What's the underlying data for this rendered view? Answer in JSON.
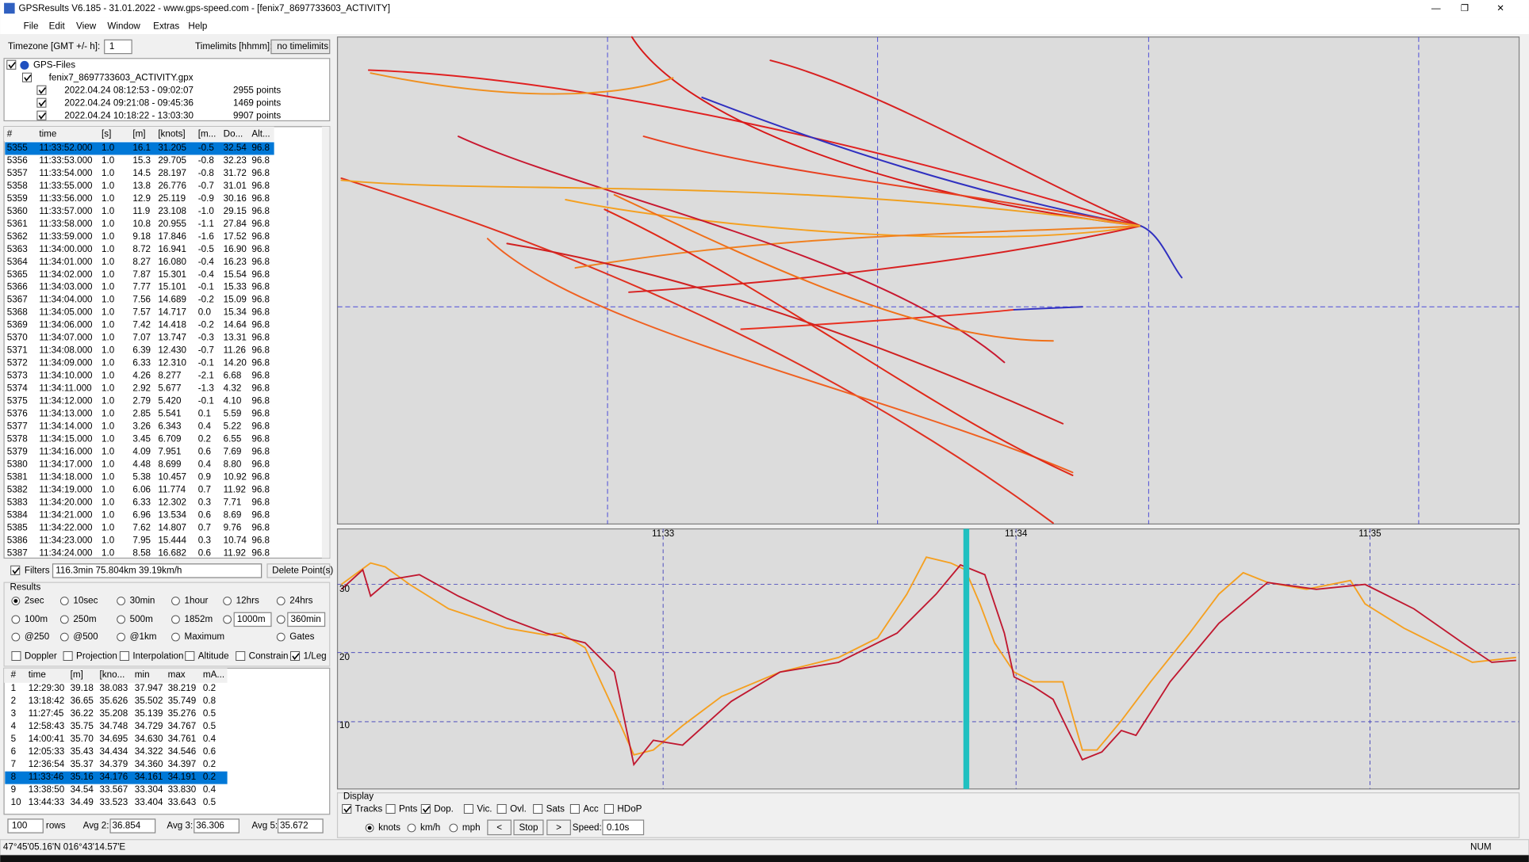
{
  "window": {
    "title": "GPSResults V6.185 - 31.01.2022 - www.gps-speed.com - [fenix7_8697733603_ACTIVITY]",
    "menu": [
      "File",
      "Edit",
      "View",
      "Window",
      "Extras",
      "Help"
    ]
  },
  "toolbar": {
    "timezone_label": "Timezone [GMT +/- h]:",
    "timezone": "1",
    "timelimits_label": "Timelimits [hhmm]:",
    "timelimits": "no timelimits"
  },
  "tree": {
    "root": "GPS-Files",
    "file": "fenix7_8697733603_ACTIVITY.gpx",
    "segments": [
      {
        "range": "2022.04.24 08:12:53 - 09:02:07",
        "points": "2955 points"
      },
      {
        "range": "2022.04.24 09:21:08 - 09:45:36",
        "points": "1469 points"
      },
      {
        "range": "2022.04.24 10:18:22 - 13:03:30",
        "points": "9907 points"
      }
    ]
  },
  "points_table": {
    "columns": [
      "#",
      "time",
      "[s]",
      "[m]",
      "[knots]",
      "[m...",
      "Do...",
      "Alt..."
    ],
    "rows": [
      [
        "5355",
        "11:33:52.000",
        "1.0",
        "16.1",
        "31.205",
        "-0.5",
        "32.54",
        "96.8"
      ],
      [
        "5356",
        "11:33:53.000",
        "1.0",
        "15.3",
        "29.705",
        "-0.8",
        "32.23",
        "96.8"
      ],
      [
        "5357",
        "11:33:54.000",
        "1.0",
        "14.5",
        "28.197",
        "-0.8",
        "31.72",
        "96.8"
      ],
      [
        "5358",
        "11:33:55.000",
        "1.0",
        "13.8",
        "26.776",
        "-0.7",
        "31.01",
        "96.8"
      ],
      [
        "5359",
        "11:33:56.000",
        "1.0",
        "12.9",
        "25.119",
        "-0.9",
        "30.16",
        "96.8"
      ],
      [
        "5360",
        "11:33:57.000",
        "1.0",
        "11.9",
        "23.108",
        "-1.0",
        "29.15",
        "96.8"
      ],
      [
        "5361",
        "11:33:58.000",
        "1.0",
        "10.8",
        "20.955",
        "-1.1",
        "27.84",
        "96.8"
      ],
      [
        "5362",
        "11:33:59.000",
        "1.0",
        "9.18",
        "17.846",
        "-1.6",
        "17.52",
        "96.8"
      ],
      [
        "5363",
        "11:34:00.000",
        "1.0",
        "8.72",
        "16.941",
        "-0.5",
        "16.90",
        "96.8"
      ],
      [
        "5364",
        "11:34:01.000",
        "1.0",
        "8.27",
        "16.080",
        "-0.4",
        "16.23",
        "96.8"
      ],
      [
        "5365",
        "11:34:02.000",
        "1.0",
        "7.87",
        "15.301",
        "-0.4",
        "15.54",
        "96.8"
      ],
      [
        "5366",
        "11:34:03.000",
        "1.0",
        "7.77",
        "15.101",
        "-0.1",
        "15.33",
        "96.8"
      ],
      [
        "5367",
        "11:34:04.000",
        "1.0",
        "7.56",
        "14.689",
        "-0.2",
        "15.09",
        "96.8"
      ],
      [
        "5368",
        "11:34:05.000",
        "1.0",
        "7.57",
        "14.717",
        "0.0",
        "15.34",
        "96.8"
      ],
      [
        "5369",
        "11:34:06.000",
        "1.0",
        "7.42",
        "14.418",
        "-0.2",
        "14.64",
        "96.8"
      ],
      [
        "5370",
        "11:34:07.000",
        "1.0",
        "7.07",
        "13.747",
        "-0.3",
        "13.31",
        "96.8"
      ],
      [
        "5371",
        "11:34:08.000",
        "1.0",
        "6.39",
        "12.430",
        "-0.7",
        "11.26",
        "96.8"
      ],
      [
        "5372",
        "11:34:09.000",
        "1.0",
        "6.33",
        "12.310",
        "-0.1",
        "14.20",
        "96.8"
      ],
      [
        "5373",
        "11:34:10.000",
        "1.0",
        "4.26",
        "8.277",
        "-2.1",
        "6.68",
        "96.8"
      ],
      [
        "5374",
        "11:34:11.000",
        "1.0",
        "2.92",
        "5.677",
        "-1.3",
        "4.32",
        "96.8"
      ],
      [
        "5375",
        "11:34:12.000",
        "1.0",
        "2.79",
        "5.420",
        "-0.1",
        "4.10",
        "96.8"
      ],
      [
        "5376",
        "11:34:13.000",
        "1.0",
        "2.85",
        "5.541",
        "0.1",
        "5.59",
        "96.8"
      ],
      [
        "5377",
        "11:34:14.000",
        "1.0",
        "3.26",
        "6.343",
        "0.4",
        "5.22",
        "96.8"
      ],
      [
        "5378",
        "11:34:15.000",
        "1.0",
        "3.45",
        "6.709",
        "0.2",
        "6.55",
        "96.8"
      ],
      [
        "5379",
        "11:34:16.000",
        "1.0",
        "4.09",
        "7.951",
        "0.6",
        "7.69",
        "96.8"
      ],
      [
        "5380",
        "11:34:17.000",
        "1.0",
        "4.48",
        "8.699",
        "0.4",
        "8.80",
        "96.8"
      ],
      [
        "5381",
        "11:34:18.000",
        "1.0",
        "5.38",
        "10.457",
        "0.9",
        "10.92",
        "96.8"
      ],
      [
        "5382",
        "11:34:19.000",
        "1.0",
        "6.06",
        "11.774",
        "0.7",
        "11.92",
        "96.8"
      ],
      [
        "5383",
        "11:34:20.000",
        "1.0",
        "6.33",
        "12.302",
        "0.3",
        "7.71",
        "96.8"
      ],
      [
        "5384",
        "11:34:21.000",
        "1.0",
        "6.96",
        "13.534",
        "0.6",
        "8.69",
        "96.8"
      ],
      [
        "5385",
        "11:34:22.000",
        "1.0",
        "7.62",
        "14.807",
        "0.7",
        "9.76",
        "96.8"
      ],
      [
        "5386",
        "11:34:23.000",
        "1.0",
        "7.95",
        "15.444",
        "0.3",
        "10.74",
        "96.8"
      ],
      [
        "5387",
        "11:34:24.000",
        "1.0",
        "8.58",
        "16.682",
        "0.6",
        "11.92",
        "96.8"
      ]
    ]
  },
  "filters": {
    "label": "Filters",
    "value": "116.3min 75.804km 39.19km/h",
    "button": "Delete Point(s)"
  },
  "results": {
    "label": "Results",
    "options": [
      [
        "2sec",
        "10sec",
        "30min",
        "1hour",
        "12hrs",
        "24hrs"
      ],
      [
        "100m",
        "250m",
        "500m",
        "1852m",
        "1000m",
        "360min"
      ],
      [
        "@250",
        "@500",
        "@1km",
        "Maximum",
        "Gates"
      ]
    ],
    "checks": [
      "Doppler",
      "Projection",
      "Interpolation",
      "Altitude",
      "Constrain",
      "1/Leg"
    ]
  },
  "results_table": {
    "columns": [
      "#",
      "time",
      "[m]",
      "[kno...",
      "min",
      "max",
      "mA..."
    ],
    "rows": [
      [
        "1",
        "12:29:30",
        "39.18",
        "38.083",
        "37.947",
        "38.219",
        "0.2"
      ],
      [
        "2",
        "13:18:42",
        "36.65",
        "35.626",
        "35.502",
        "35.749",
        "0.8"
      ],
      [
        "3",
        "11:27:45",
        "36.22",
        "35.208",
        "35.139",
        "35.276",
        "0.5"
      ],
      [
        "4",
        "12:58:43",
        "35.75",
        "34.748",
        "34.729",
        "34.767",
        "0.5"
      ],
      [
        "5",
        "14:00:41",
        "35.70",
        "34.695",
        "34.630",
        "34.761",
        "0.4"
      ],
      [
        "6",
        "12:05:33",
        "35.43",
        "34.434",
        "34.322",
        "34.546",
        "0.6"
      ],
      [
        "7",
        "12:36:54",
        "35.37",
        "34.379",
        "34.360",
        "34.397",
        "0.2"
      ],
      [
        "8",
        "11:33:46",
        "35.16",
        "34.176",
        "34.161",
        "34.191",
        "0.2"
      ],
      [
        "9",
        "13:38:50",
        "34.54",
        "33.567",
        "33.304",
        "33.830",
        "0.4"
      ],
      [
        "10",
        "13:44:33",
        "34.49",
        "33.523",
        "33.404",
        "33.643",
        "0.5"
      ]
    ]
  },
  "footer": {
    "rows": "100",
    "rows_label": "rows",
    "avg2_label": "Avg 2:",
    "avg2": "36.854",
    "avg3_label": "Avg 3:",
    "avg3": "36.306",
    "avg5_label": "Avg 5:",
    "avg5": "35.672"
  },
  "graph": {
    "x_labels": [
      "11:33",
      "11:34",
      "11:35"
    ],
    "y_labels": [
      "30",
      "20",
      "10"
    ]
  },
  "display": {
    "label": "Display",
    "checks": [
      "Tracks",
      "Pnts",
      "Dop.",
      "Vic.",
      "Ovl.",
      "Sats",
      "Acc",
      "HDoP"
    ],
    "units": [
      "knots",
      "km/h",
      "mph"
    ],
    "prev": "<",
    "stop": "Stop",
    "next": ">",
    "speed_label": "Speed:",
    "speed": "0.10s"
  },
  "status": {
    "coords": "47°45'05.16'N 016°43'14.57'E",
    "num": "NUM"
  }
}
